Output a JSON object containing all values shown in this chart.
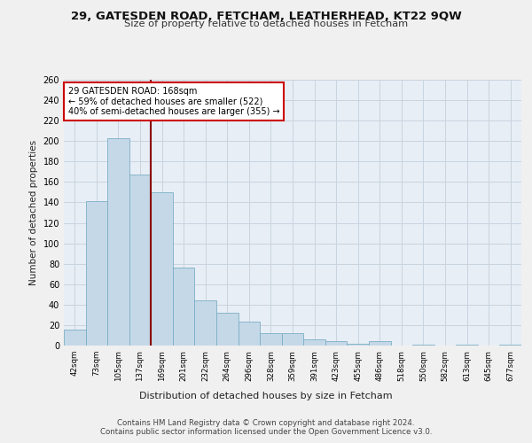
{
  "title1": "29, GATESDEN ROAD, FETCHAM, LEATHERHEAD, KT22 9QW",
  "title2": "Size of property relative to detached houses in Fetcham",
  "xlabel": "Distribution of detached houses by size in Fetcham",
  "ylabel": "Number of detached properties",
  "footer1": "Contains HM Land Registry data © Crown copyright and database right 2024.",
  "footer2": "Contains public sector information licensed under the Open Government Licence v3.0.",
  "annotation_line1": "29 GATESDEN ROAD: 168sqm",
  "annotation_line2": "← 59% of detached houses are smaller (522)",
  "annotation_line3": "40% of semi-detached houses are larger (355) →",
  "categories": [
    "42sqm",
    "73sqm",
    "105sqm",
    "137sqm",
    "169sqm",
    "201sqm",
    "232sqm",
    "264sqm",
    "296sqm",
    "328sqm",
    "359sqm",
    "391sqm",
    "423sqm",
    "455sqm",
    "486sqm",
    "518sqm",
    "550sqm",
    "582sqm",
    "613sqm",
    "645sqm",
    "677sqm"
  ],
  "values": [
    16,
    141,
    203,
    167,
    150,
    76,
    44,
    32,
    23,
    12,
    12,
    6,
    4,
    2,
    4,
    0,
    1,
    0,
    1,
    0,
    1
  ],
  "bar_color": "#c5d8e8",
  "bar_edge_color": "#7aafc5",
  "vline_color": "#8b0000",
  "vline_x": 3.5,
  "annotation_box_edge_color": "#cc0000",
  "annotation_box_face_color": "#ffffff",
  "grid_color": "#c8d4e0",
  "background_color": "#e8eef5",
  "fig_background": "#f0f0f0",
  "ylim": [
    0,
    260
  ],
  "yticks": [
    0,
    20,
    40,
    60,
    80,
    100,
    120,
    140,
    160,
    180,
    200,
    220,
    240,
    260
  ]
}
